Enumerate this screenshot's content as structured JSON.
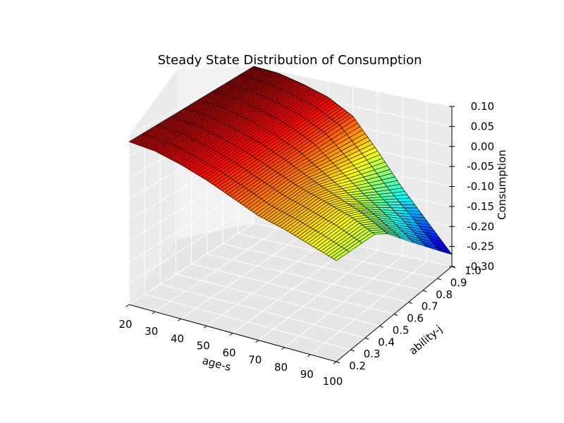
{
  "chart_data": {
    "type": "surface",
    "title": "Steady State Distribution of Consumption",
    "xlabel": "age-s",
    "ylabel": "ability-j",
    "zlabel": "Consumption",
    "x_ticks": [
      "20",
      "30",
      "40",
      "50",
      "60",
      "70",
      "80",
      "90",
      "100"
    ],
    "y_ticks": [
      "0.2",
      "0.3",
      "0.4",
      "0.5",
      "0.6",
      "0.7",
      "0.8",
      "0.9",
      "1.0"
    ],
    "z_ticks": [
      "0.10",
      "0.05",
      "0.00",
      "-0.05",
      "-0.10",
      "-0.15",
      "-0.20",
      "-0.25",
      "-0.30"
    ],
    "xlim": [
      20,
      100
    ],
    "ylim": [
      0.2,
      1.0
    ],
    "zlim": [
      -0.3,
      0.1
    ],
    "colormap": "jet",
    "grid": true,
    "surface_samples": {
      "ability": [
        0.2,
        0.5,
        1.0
      ],
      "age": [
        20,
        30,
        40,
        50,
        60,
        70,
        80,
        90,
        100
      ],
      "consumption_at_ability_0.2": [
        0.085,
        0.08,
        0.065,
        0.045,
        0.02,
        -0.005,
        -0.02,
        -0.04,
        -0.06
      ],
      "consumption_at_ability_0.5": [
        0.09,
        0.085,
        0.07,
        0.05,
        0.025,
        0.0,
        -0.02,
        -0.04,
        -0.07
      ],
      "consumption_at_ability_1.0": [
        0.1,
        0.095,
        0.08,
        0.06,
        0.025,
        -0.05,
        -0.13,
        -0.2,
        -0.27
      ]
    }
  }
}
